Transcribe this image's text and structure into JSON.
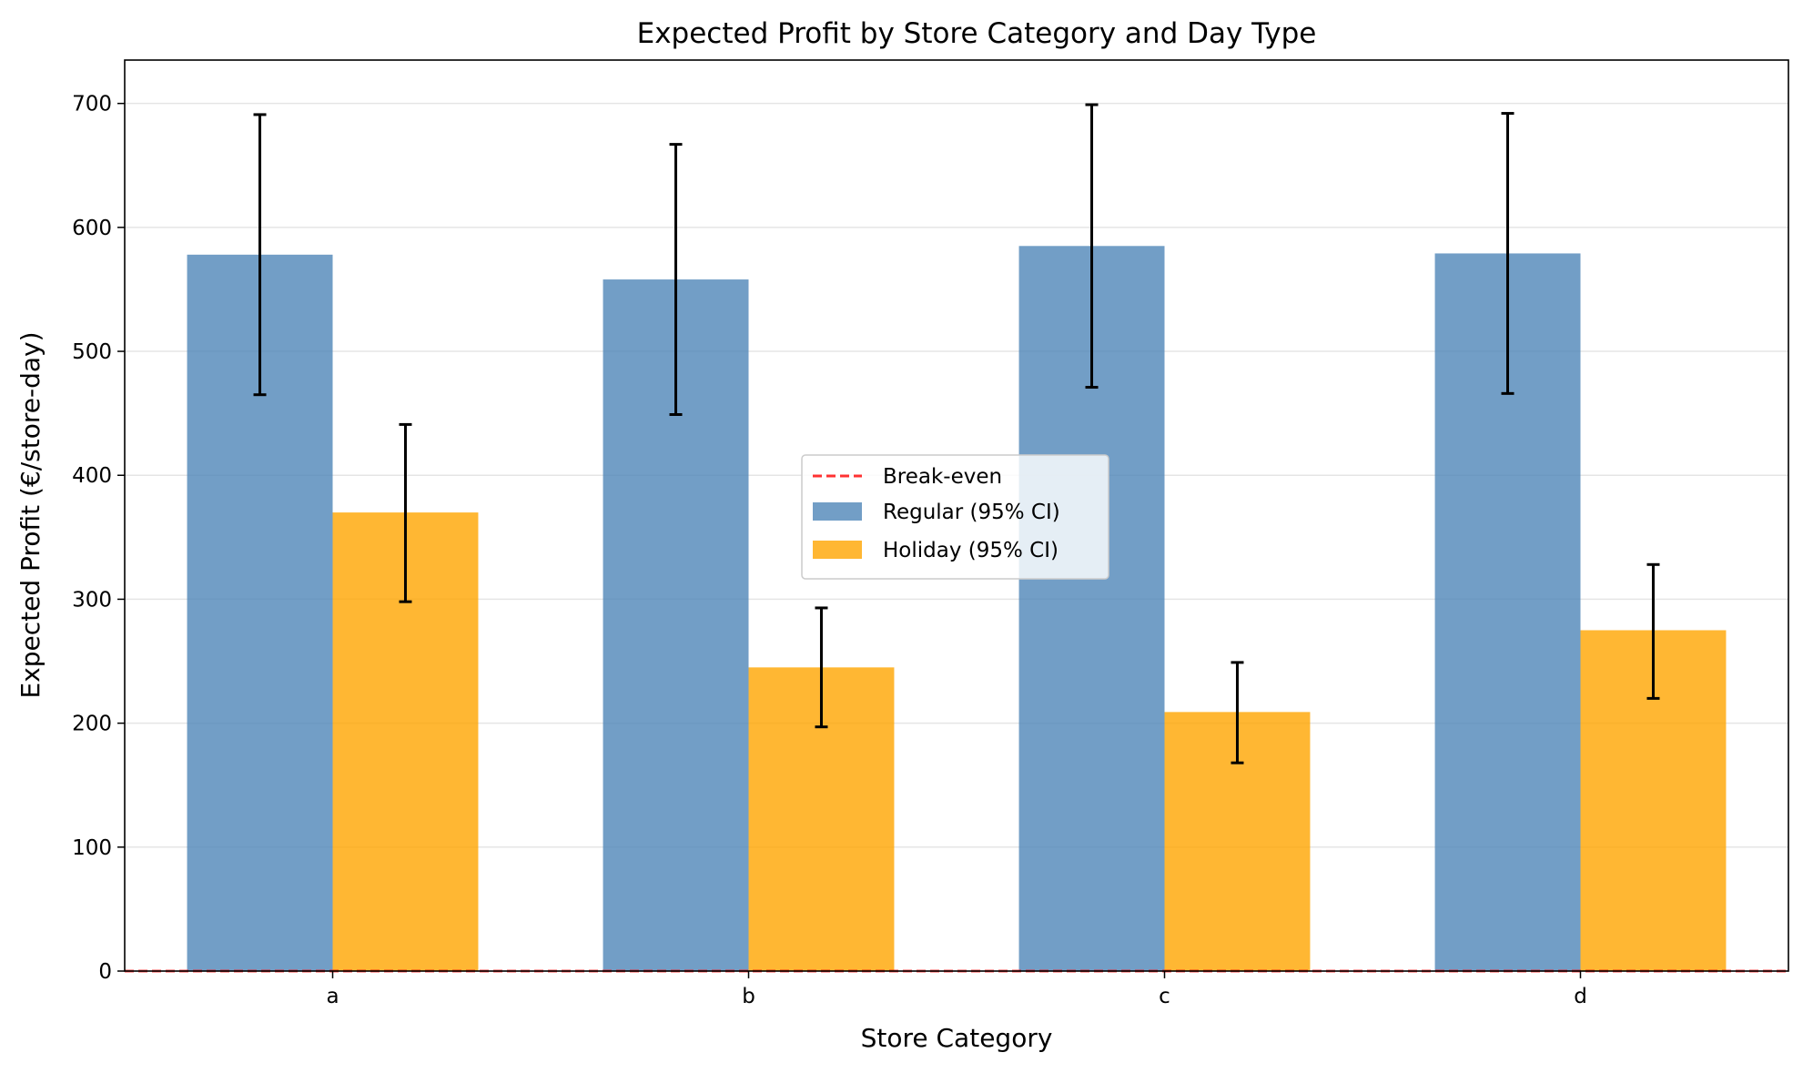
{
  "chart_data": {
    "type": "bar",
    "title": "Expected Profit by Store Category and Day Type",
    "xlabel": "Store Category",
    "ylabel": "Expected Profit (€/store-day)",
    "categories": [
      "a",
      "b",
      "c",
      "d"
    ],
    "ylim": [
      0,
      735
    ],
    "yticks": [
      0,
      100,
      200,
      300,
      400,
      500,
      600,
      700
    ],
    "grid": "horizontal",
    "legend_position": "center",
    "series": [
      {
        "name": "Regular (95% CI)",
        "color": "#4f86b8",
        "values": [
          578,
          558,
          585,
          579
        ],
        "ci_low": [
          465,
          449,
          471,
          466
        ],
        "ci_high": [
          691,
          667,
          699,
          692
        ]
      },
      {
        "name": "Holiday (95% CI)",
        "color": "#ffa500",
        "values": [
          370,
          245,
          209,
          275
        ],
        "ci_low": [
          298,
          197,
          168,
          220
        ],
        "ci_high": [
          441,
          293,
          249,
          328
        ]
      }
    ],
    "reference_line": {
      "name": "Break-even",
      "value": 0,
      "color": "#ff0000",
      "style": "dashed"
    }
  }
}
